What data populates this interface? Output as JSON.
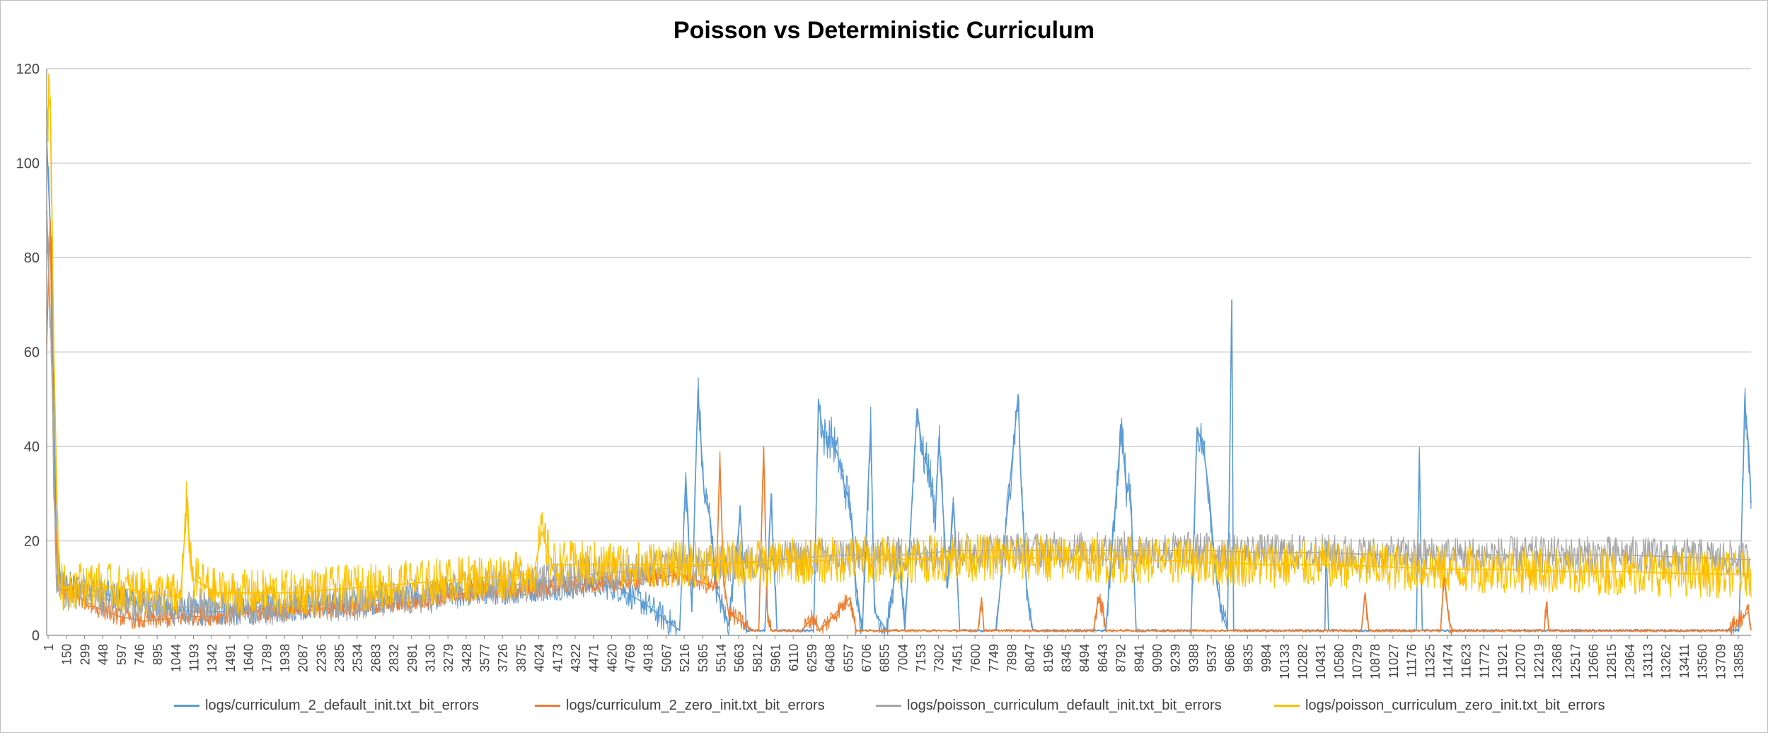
{
  "chart_data": {
    "type": "line",
    "title": "Poisson vs Deterministic Curriculum",
    "xlabel": "",
    "ylabel": "",
    "ylim": [
      0,
      120
    ],
    "y_ticks": [
      0,
      20,
      40,
      60,
      80,
      100,
      120
    ],
    "x_range": [
      1,
      14000
    ],
    "x_tick_labels": [
      "1",
      "150",
      "299",
      "448",
      "597",
      "746",
      "895",
      "1044",
      "1193",
      "1342",
      "1491",
      "1640",
      "1789",
      "1938",
      "2087",
      "2236",
      "2385",
      "2534",
      "2683",
      "2832",
      "2981",
      "3130",
      "3279",
      "3428",
      "3577",
      "3726",
      "3875",
      "4024",
      "4173",
      "4322",
      "4471",
      "4620",
      "4769",
      "4918",
      "5067",
      "5216",
      "5365",
      "5514",
      "5663",
      "5812",
      "5961",
      "6110",
      "6259",
      "6408",
      "6557",
      "6706",
      "6855",
      "7004",
      "7153",
      "7302",
      "7451",
      "7600",
      "7749",
      "7898",
      "8047",
      "8196",
      "8345",
      "8494",
      "8643",
      "8792",
      "8941",
      "9090",
      "9239",
      "9388",
      "9537",
      "9686",
      "9835",
      "9984",
      "10133",
      "10282",
      "10431",
      "10580",
      "10729",
      "10878",
      "11027",
      "11176",
      "11325",
      "11474",
      "11623",
      "11772",
      "11921",
      "12070",
      "12219",
      "12368",
      "12517",
      "12666",
      "12815",
      "12964",
      "13113",
      "13262",
      "13411",
      "13560",
      "13709",
      "13858"
    ],
    "grid": "horizontal",
    "legend_position": "bottom",
    "series": [
      {
        "name": "logs/curriculum_2_default_init.txt_bit_errors",
        "color": "#5b9bd5",
        "points": [
          [
            1,
            105
          ],
          [
            40,
            80
          ],
          [
            80,
            20
          ],
          [
            120,
            11
          ],
          [
            300,
            10
          ],
          [
            600,
            8
          ],
          [
            900,
            6
          ],
          [
            1200,
            5
          ],
          [
            1600,
            5
          ],
          [
            2000,
            6
          ],
          [
            2500,
            7
          ],
          [
            3000,
            8
          ],
          [
            3500,
            9
          ],
          [
            4000,
            10
          ],
          [
            4500,
            11
          ],
          [
            4700,
            10
          ],
          [
            4900,
            7
          ],
          [
            5100,
            3
          ],
          [
            5200,
            1
          ],
          [
            5250,
            34
          ],
          [
            5300,
            5
          ],
          [
            5350,
            52
          ],
          [
            5400,
            30
          ],
          [
            5450,
            25
          ],
          [
            5500,
            10
          ],
          [
            5600,
            2
          ],
          [
            5700,
            26
          ],
          [
            5750,
            1
          ],
          [
            5900,
            1
          ],
          [
            5950,
            29
          ],
          [
            6000,
            1
          ],
          [
            6300,
            1
          ],
          [
            6340,
            50
          ],
          [
            6380,
            42
          ],
          [
            6450,
            42
          ],
          [
            6500,
            38
          ],
          [
            6550,
            32
          ],
          [
            6600,
            28
          ],
          [
            6650,
            10
          ],
          [
            6700,
            1
          ],
          [
            6770,
            45
          ],
          [
            6800,
            5
          ],
          [
            6900,
            1
          ],
          [
            7000,
            18
          ],
          [
            7050,
            1
          ],
          [
            7150,
            48
          ],
          [
            7200,
            38
          ],
          [
            7250,
            35
          ],
          [
            7300,
            25
          ],
          [
            7330,
            42
          ],
          [
            7400,
            10
          ],
          [
            7450,
            28
          ],
          [
            7500,
            1
          ],
          [
            7800,
            1
          ],
          [
            7980,
            51
          ],
          [
            8000,
            35
          ],
          [
            8050,
            10
          ],
          [
            8100,
            1
          ],
          [
            8700,
            1
          ],
          [
            8830,
            45
          ],
          [
            8870,
            30
          ],
          [
            8900,
            32
          ],
          [
            8950,
            1
          ],
          [
            9400,
            1
          ],
          [
            9450,
            44
          ],
          [
            9500,
            40
          ],
          [
            9550,
            30
          ],
          [
            9580,
            20
          ],
          [
            9620,
            10
          ],
          [
            9650,
            5
          ],
          [
            9700,
            1
          ],
          [
            9735,
            71
          ],
          [
            9750,
            1
          ],
          [
            10500,
            1
          ],
          [
            10510,
            20
          ],
          [
            10530,
            1
          ],
          [
            11250,
            1
          ],
          [
            11275,
            38
          ],
          [
            11300,
            1
          ],
          [
            13900,
            1
          ],
          [
            13950,
            49
          ],
          [
            13980,
            40
          ],
          [
            14000,
            28
          ]
        ]
      },
      {
        "name": "logs/curriculum_2_zero_init.txt_bit_errors",
        "color": "#ed7d31",
        "points": [
          [
            1,
            62
          ],
          [
            30,
            88
          ],
          [
            60,
            30
          ],
          [
            100,
            10
          ],
          [
            200,
            9
          ],
          [
            400,
            6
          ],
          [
            600,
            4
          ],
          [
            800,
            3
          ],
          [
            1000,
            3.5
          ],
          [
            1200,
            4
          ],
          [
            1400,
            4
          ],
          [
            1600,
            5
          ],
          [
            2000,
            5
          ],
          [
            2500,
            6
          ],
          [
            3000,
            7
          ],
          [
            3500,
            9
          ],
          [
            4000,
            10
          ],
          [
            4500,
            11
          ],
          [
            5000,
            12
          ],
          [
            5200,
            13
          ],
          [
            5400,
            11
          ],
          [
            5500,
            10
          ],
          [
            5530,
            37
          ],
          [
            5560,
            12
          ],
          [
            5600,
            5
          ],
          [
            5700,
            3
          ],
          [
            5800,
            1
          ],
          [
            5850,
            1
          ],
          [
            5890,
            40
          ],
          [
            5920,
            5
          ],
          [
            5950,
            1
          ],
          [
            6200,
            1
          ],
          [
            6300,
            4
          ],
          [
            6350,
            1
          ],
          [
            6600,
            8
          ],
          [
            6650,
            1
          ],
          [
            7650,
            1
          ],
          [
            7680,
            8
          ],
          [
            7700,
            1
          ],
          [
            8600,
            1
          ],
          [
            8640,
            8
          ],
          [
            8680,
            5
          ],
          [
            8700,
            1
          ],
          [
            10800,
            1
          ],
          [
            10830,
            9
          ],
          [
            10860,
            1
          ],
          [
            11450,
            1
          ],
          [
            11480,
            13
          ],
          [
            11520,
            3
          ],
          [
            11550,
            1
          ],
          [
            12300,
            1
          ],
          [
            12320,
            7
          ],
          [
            12340,
            1
          ],
          [
            13700,
            1
          ],
          [
            13800,
            1
          ],
          [
            13980,
            5
          ],
          [
            14000,
            1
          ]
        ]
      },
      {
        "name": "logs/poisson_curriculum_default_init.txt_bit_errors",
        "color": "#a5a5a5",
        "points": [
          [
            1,
            90
          ],
          [
            40,
            60
          ],
          [
            80,
            12
          ],
          [
            150,
            9
          ],
          [
            300,
            9
          ],
          [
            600,
            7
          ],
          [
            900,
            6
          ],
          [
            1200,
            6
          ],
          [
            1500,
            6
          ],
          [
            1800,
            6
          ],
          [
            2100,
            7
          ],
          [
            2500,
            7
          ],
          [
            3000,
            8
          ],
          [
            3500,
            10
          ],
          [
            4000,
            11
          ],
          [
            4500,
            13
          ],
          [
            5000,
            14
          ],
          [
            5500,
            15
          ],
          [
            6000,
            16
          ],
          [
            6500,
            17
          ],
          [
            7000,
            17
          ],
          [
            7500,
            18
          ],
          [
            8000,
            18
          ],
          [
            8500,
            18
          ],
          [
            9000,
            18
          ],
          [
            9500,
            18
          ],
          [
            10000,
            17.5
          ],
          [
            10500,
            17.5
          ],
          [
            11000,
            17
          ],
          [
            11500,
            17
          ],
          [
            12000,
            17
          ],
          [
            12500,
            17
          ],
          [
            13000,
            17
          ],
          [
            13500,
            16.5
          ],
          [
            14000,
            16
          ]
        ]
      },
      {
        "name": "logs/poisson_curriculum_zero_init.txt_bit_errors",
        "color": "#ffc000",
        "points": [
          [
            1,
            110
          ],
          [
            30,
            114
          ],
          [
            60,
            60
          ],
          [
            100,
            11
          ],
          [
            150,
            10
          ],
          [
            300,
            11
          ],
          [
            600,
            10
          ],
          [
            900,
            9
          ],
          [
            1100,
            8
          ],
          [
            1150,
            27
          ],
          [
            1200,
            12
          ],
          [
            1400,
            9
          ],
          [
            1700,
            9
          ],
          [
            2000,
            9
          ],
          [
            2500,
            10
          ],
          [
            3000,
            11
          ],
          [
            3500,
            12
          ],
          [
            4000,
            13
          ],
          [
            4070,
            22
          ],
          [
            4150,
            15
          ],
          [
            4500,
            15
          ],
          [
            5000,
            15
          ],
          [
            5500,
            15
          ],
          [
            6000,
            15.5
          ],
          [
            6500,
            16
          ],
          [
            7000,
            16
          ],
          [
            7500,
            16.5
          ],
          [
            8000,
            16.5
          ],
          [
            8500,
            16
          ],
          [
            9000,
            16
          ],
          [
            9500,
            15.5
          ],
          [
            10000,
            15
          ],
          [
            10500,
            15
          ],
          [
            11000,
            14.5
          ],
          [
            11500,
            14
          ],
          [
            12000,
            14
          ],
          [
            12500,
            13.5
          ],
          [
            13000,
            13.5
          ],
          [
            13500,
            13
          ],
          [
            14000,
            13
          ]
        ]
      }
    ]
  }
}
